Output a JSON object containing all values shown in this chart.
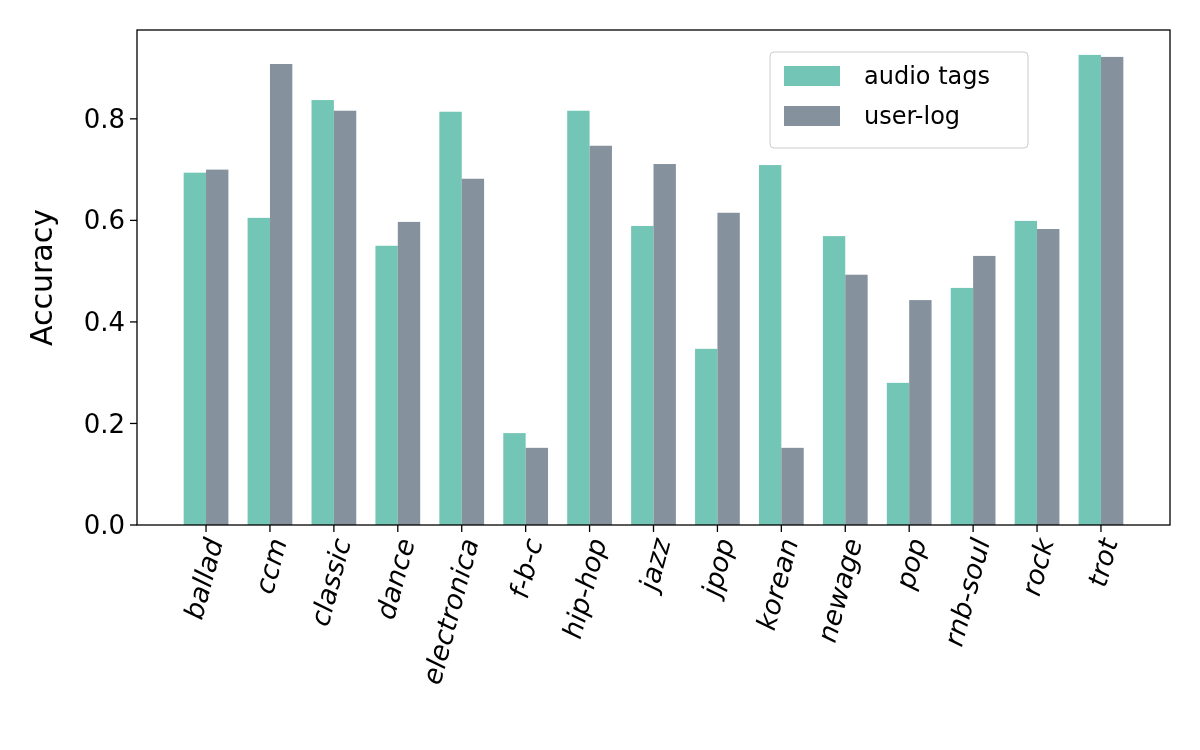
{
  "chart_data": {
    "type": "bar",
    "ylabel": "Accuracy",
    "categories": [
      "ballad",
      "ccm",
      "classic",
      "dance",
      "electronica",
      "f-b-c",
      "hip-hop",
      "jazz",
      "jpop",
      "korean",
      "newage",
      "pop",
      "rnb-soul",
      "rock",
      "trot"
    ],
    "series": [
      {
        "name": "audio tags",
        "color": "#73c6b6",
        "values": [
          0.694,
          0.605,
          0.837,
          0.55,
          0.814,
          0.181,
          0.816,
          0.589,
          0.347,
          0.709,
          0.569,
          0.28,
          0.467,
          0.599,
          0.926
        ]
      },
      {
        "name": "user-log",
        "color": "#85919d",
        "values": [
          0.7,
          0.908,
          0.816,
          0.597,
          0.682,
          0.152,
          0.747,
          0.711,
          0.615,
          0.152,
          0.493,
          0.443,
          0.53,
          0.583,
          0.922
        ]
      }
    ],
    "ylim": [
      0,
      0.975
    ],
    "yticks": [
      {
        "value": 0,
        "label": "0.0"
      },
      {
        "value": 0.2,
        "label": "0.2"
      },
      {
        "value": 0.4,
        "label": "0.4"
      },
      {
        "value": 0.6,
        "label": "0.6"
      },
      {
        "value": 0.8,
        "label": "0.8"
      }
    ],
    "grid": false,
    "legend": "top right"
  }
}
